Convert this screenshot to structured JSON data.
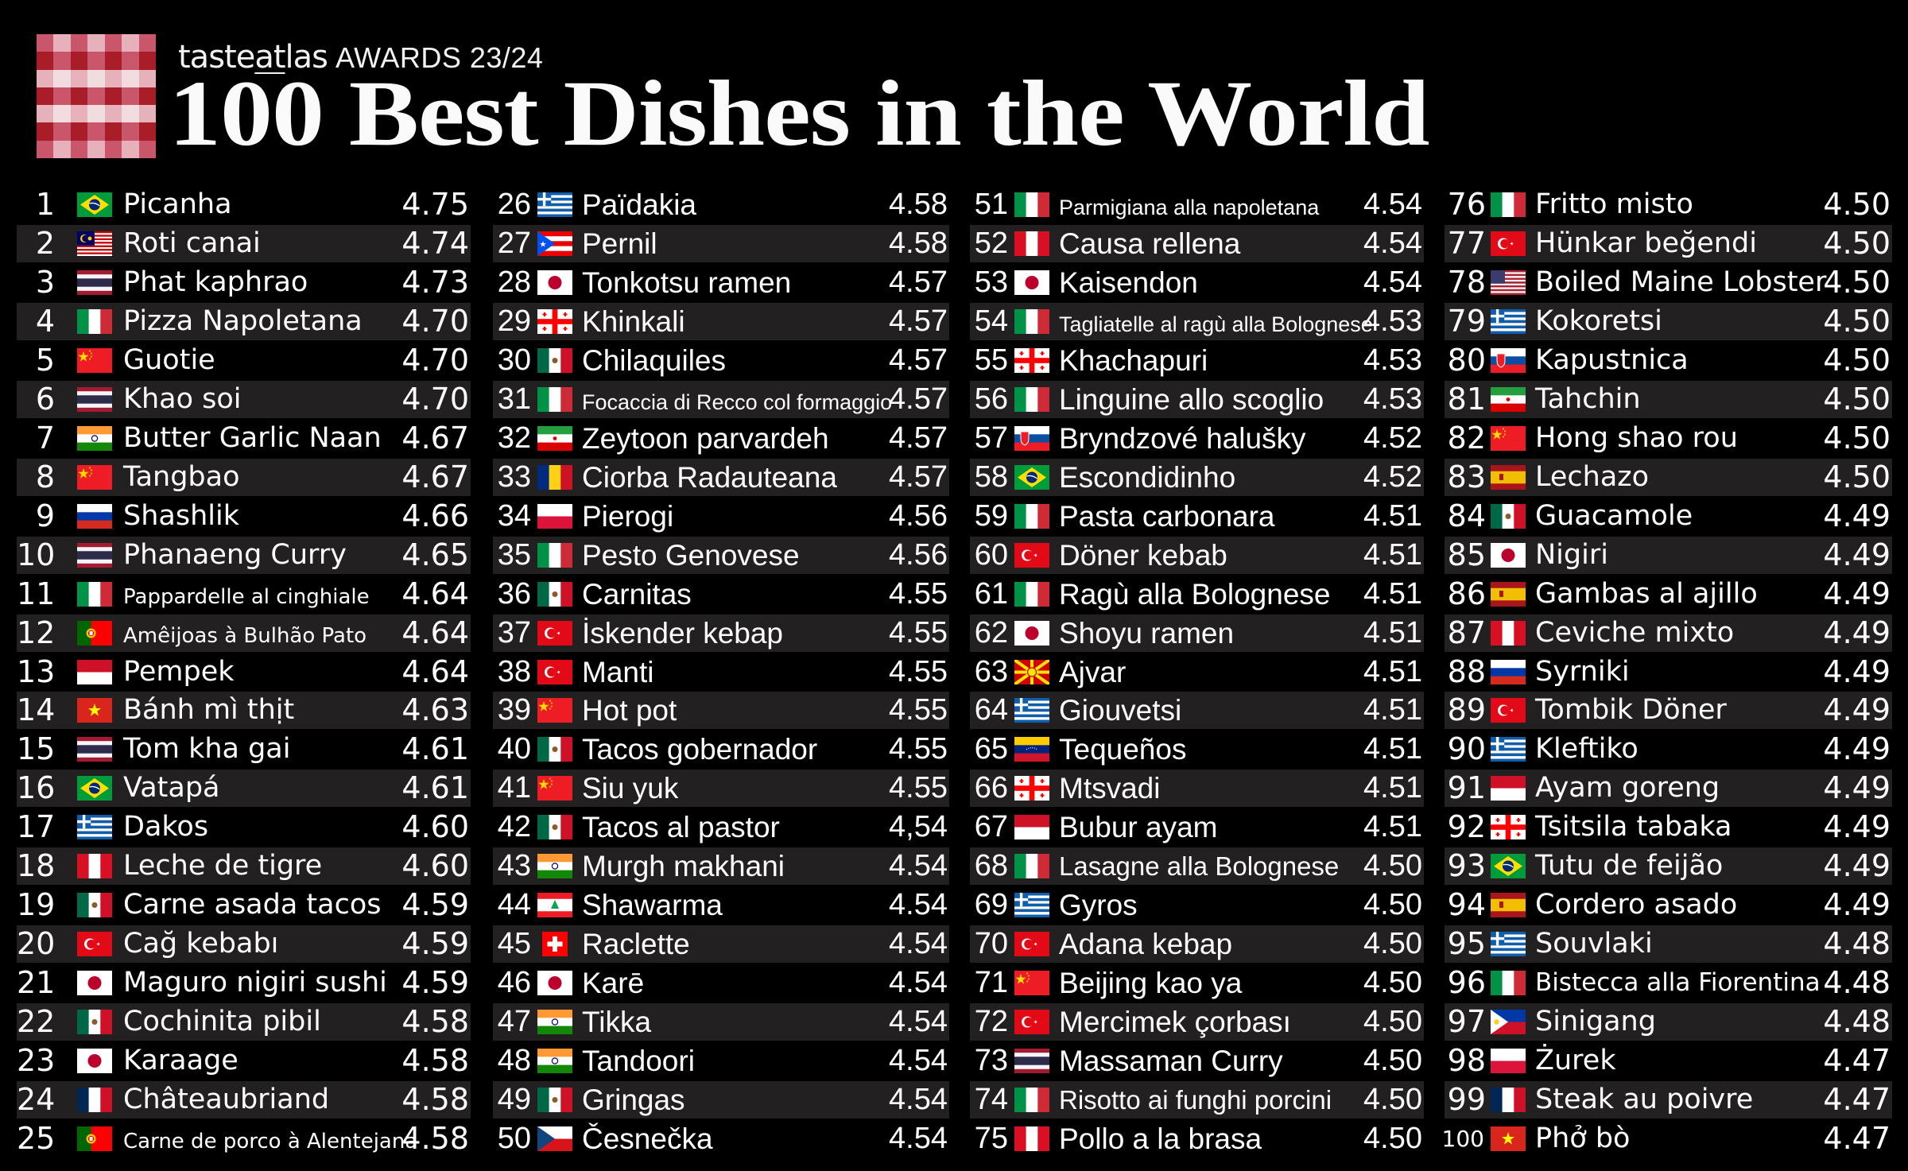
{
  "header": {
    "brand_name": "tasteatlas",
    "awards_label": "AWARDS 23/24",
    "title": "100 Best Dishes in the World",
    "logo_colors": {
      "dark": "#a91d28",
      "mid": "#c9566a",
      "light": "#e6b1ba",
      "pale": "#f1dcdf"
    }
  },
  "colors": {
    "background": "#000000",
    "stripe": "#222021",
    "text": "#ffffff"
  },
  "columns": [
    {
      "dishes": [
        {
          "rank": "1",
          "flag": "brazil",
          "name": "Picanha",
          "score": "4.75"
        },
        {
          "rank": "2",
          "flag": "malaysia",
          "name": "Roti canai",
          "score": "4.74"
        },
        {
          "rank": "3",
          "flag": "thailand",
          "name": "Phat kaphrao",
          "score": "4.73"
        },
        {
          "rank": "4",
          "flag": "italy",
          "name": "Pizza Napoletana",
          "score": "4.70"
        },
        {
          "rank": "5",
          "flag": "china",
          "name": "Guotie",
          "score": "4.70"
        },
        {
          "rank": "6",
          "flag": "thailand",
          "name": "Khao soi",
          "score": "4.70"
        },
        {
          "rank": "7",
          "flag": "india",
          "name": "Butter Garlic Naan",
          "score": "4.67"
        },
        {
          "rank": "8",
          "flag": "china",
          "name": "Tangbao",
          "score": "4.67"
        },
        {
          "rank": "9",
          "flag": "russia",
          "name": "Shashlik",
          "score": "4.66"
        },
        {
          "rank": "10",
          "flag": "thailand",
          "name": "Phanaeng Curry",
          "score": "4.65"
        },
        {
          "rank": "11",
          "flag": "italy",
          "name": "Pappardelle al cinghiale",
          "score": "4.64",
          "small": true
        },
        {
          "rank": "12",
          "flag": "portugal",
          "name": "Amêijoas à Bulhão Pato",
          "score": "4.64",
          "small": true
        },
        {
          "rank": "13",
          "flag": "indonesia",
          "name": "Pempek",
          "score": "4.64"
        },
        {
          "rank": "14",
          "flag": "vietnam",
          "name": "Bánh mì thịt",
          "score": "4.63"
        },
        {
          "rank": "15",
          "flag": "thailand",
          "name": "Tom kha gai",
          "score": "4.61"
        },
        {
          "rank": "16",
          "flag": "brazil",
          "name": "Vatapá",
          "score": "4.61"
        },
        {
          "rank": "17",
          "flag": "greece",
          "name": "Dakos",
          "score": "4.60"
        },
        {
          "rank": "18",
          "flag": "peru",
          "name": "Leche de tigre",
          "score": "4.60"
        },
        {
          "rank": "19",
          "flag": "mexico",
          "name": "Carne asada tacos",
          "score": "4.59"
        },
        {
          "rank": "20",
          "flag": "turkey",
          "name": "Cağ kebabı",
          "score": "4.59"
        },
        {
          "rank": "21",
          "flag": "japan",
          "name": "Maguro nigiri sushi",
          "score": "4.59"
        },
        {
          "rank": "22",
          "flag": "mexico",
          "name": "Cochinita pibil",
          "score": "4.58"
        },
        {
          "rank": "23",
          "flag": "japan",
          "name": "Karaage",
          "score": "4.58"
        },
        {
          "rank": "24",
          "flag": "france",
          "name": "Châteaubriand",
          "score": "4.58"
        },
        {
          "rank": "25",
          "flag": "portugal",
          "name": "Carne de porco à Alentejana",
          "score": "4.58",
          "small": true
        }
      ]
    },
    {
      "dishes": [
        {
          "rank": "26",
          "flag": "greece",
          "name": "Païdakia",
          "score": "4.58"
        },
        {
          "rank": "27",
          "flag": "puerto-rico",
          "name": "Pernil",
          "score": "4.58"
        },
        {
          "rank": "28",
          "flag": "japan",
          "name": "Tonkotsu ramen",
          "score": "4.57"
        },
        {
          "rank": "29",
          "flag": "georgia",
          "name": "Khinkali",
          "score": "4.57"
        },
        {
          "rank": "30",
          "flag": "mexico",
          "name": "Chilaquiles",
          "score": "4.57"
        },
        {
          "rank": "31",
          "flag": "italy",
          "name": "Focaccia di Recco col formaggio",
          "score": "4.57",
          "small": true
        },
        {
          "rank": "32",
          "flag": "iran",
          "name": "Zeytoon parvardeh",
          "score": "4.57"
        },
        {
          "rank": "33",
          "flag": "romania",
          "name": "Ciorba Radauteana",
          "score": "4.57"
        },
        {
          "rank": "34",
          "flag": "poland",
          "name": "Pierogi",
          "score": "4.56"
        },
        {
          "rank": "35",
          "flag": "italy",
          "name": "Pesto Genovese",
          "score": "4.56"
        },
        {
          "rank": "36",
          "flag": "mexico",
          "name": "Carnitas",
          "score": "4.55"
        },
        {
          "rank": "37",
          "flag": "turkey",
          "name": "İskender kebap",
          "score": "4.55"
        },
        {
          "rank": "38",
          "flag": "turkey",
          "name": "Manti",
          "score": "4.55"
        },
        {
          "rank": "39",
          "flag": "china",
          "name": "Hot pot",
          "score": "4.55"
        },
        {
          "rank": "40",
          "flag": "mexico",
          "name": "Tacos gobernador",
          "score": "4.55"
        },
        {
          "rank": "41",
          "flag": "china",
          "name": "Siu yuk",
          "score": "4.55"
        },
        {
          "rank": "42",
          "flag": "mexico",
          "name": "Tacos al pastor",
          "score": "4,54"
        },
        {
          "rank": "43",
          "flag": "india",
          "name": "Murgh makhani",
          "score": "4.54"
        },
        {
          "rank": "44",
          "flag": "lebanon",
          "name": "Shawarma",
          "score": "4.54"
        },
        {
          "rank": "45",
          "flag": "switzerland",
          "name": "Raclette",
          "score": "4.54"
        },
        {
          "rank": "46",
          "flag": "japan",
          "name": "Karē",
          "score": "4.54"
        },
        {
          "rank": "47",
          "flag": "india",
          "name": "Tikka",
          "score": "4.54"
        },
        {
          "rank": "48",
          "flag": "india",
          "name": "Tandoori",
          "score": "4.54"
        },
        {
          "rank": "49",
          "flag": "mexico",
          "name": "Gringas",
          "score": "4.54"
        },
        {
          "rank": "50",
          "flag": "czechia",
          "name": "Česnečka",
          "score": "4.54"
        }
      ]
    },
    {
      "dishes": [
        {
          "rank": "51",
          "flag": "italy",
          "name": "Parmigiana alla napoletana",
          "score": "4.54",
          "small": true
        },
        {
          "rank": "52",
          "flag": "peru",
          "name": "Causa rellena",
          "score": "4.54"
        },
        {
          "rank": "53",
          "flag": "japan",
          "name": "Kaisendon",
          "score": "4.54"
        },
        {
          "rank": "54",
          "flag": "italy",
          "name": "Tagliatelle al ragù alla Bolognese",
          "score": "4.53",
          "small": true
        },
        {
          "rank": "55",
          "flag": "georgia",
          "name": "Khachapuri",
          "score": "4.53"
        },
        {
          "rank": "56",
          "flag": "italy",
          "name": "Linguine allo scoglio",
          "score": "4.53"
        },
        {
          "rank": "57",
          "flag": "slovakia",
          "name": "Bryndzové halušky",
          "score": "4.52"
        },
        {
          "rank": "58",
          "flag": "brazil",
          "name": "Escondidinho",
          "score": "4.52"
        },
        {
          "rank": "59",
          "flag": "italy",
          "name": "Pasta carbonara",
          "score": "4.51"
        },
        {
          "rank": "60",
          "flag": "turkey",
          "name": "Döner kebab",
          "score": "4.51"
        },
        {
          "rank": "61",
          "flag": "italy",
          "name": "Ragù alla Bolognese",
          "score": "4.51"
        },
        {
          "rank": "62",
          "flag": "japan",
          "name": "Shoyu ramen",
          "score": "4.51"
        },
        {
          "rank": "63",
          "flag": "north-macedonia",
          "name": "Ajvar",
          "score": "4.51"
        },
        {
          "rank": "64",
          "flag": "greece",
          "name": "Giouvetsi",
          "score": "4.51"
        },
        {
          "rank": "65",
          "flag": "venezuela",
          "name": "Tequeños",
          "score": "4.51"
        },
        {
          "rank": "66",
          "flag": "georgia",
          "name": "Mtsvadi",
          "score": "4.51"
        },
        {
          "rank": "67",
          "flag": "indonesia",
          "name": "Bubur ayam",
          "score": "4.51"
        },
        {
          "rank": "68",
          "flag": "italy",
          "name": "Lasagne alla Bolognese",
          "score": "4.50",
          "medium": true
        },
        {
          "rank": "69",
          "flag": "greece",
          "name": "Gyros",
          "score": "4.50"
        },
        {
          "rank": "70",
          "flag": "turkey",
          "name": "Adana kebap",
          "score": "4.50"
        },
        {
          "rank": "71",
          "flag": "china",
          "name": "Beijing kao ya",
          "score": "4.50"
        },
        {
          "rank": "72",
          "flag": "turkey",
          "name": "Mercimek çorbası",
          "score": "4.50"
        },
        {
          "rank": "73",
          "flag": "thailand",
          "name": "Massaman Curry",
          "score": "4.50"
        },
        {
          "rank": "74",
          "flag": "italy",
          "name": "Risotto ai funghi porcini",
          "score": "4.50",
          "medium": true
        },
        {
          "rank": "75",
          "flag": "peru",
          "name": "Pollo a la brasa",
          "score": "4.50"
        }
      ]
    },
    {
      "dishes": [
        {
          "rank": "76",
          "flag": "italy",
          "name": "Fritto misto",
          "score": "4.50"
        },
        {
          "rank": "77",
          "flag": "turkey",
          "name": "Hünkar beğendi",
          "score": "4.50"
        },
        {
          "rank": "78",
          "flag": "usa",
          "name": "Boiled Maine Lobster",
          "score": "4.50"
        },
        {
          "rank": "79",
          "flag": "greece",
          "name": "Kokoretsi",
          "score": "4.50"
        },
        {
          "rank": "80",
          "flag": "slovakia",
          "name": "Kapustnica",
          "score": "4.50"
        },
        {
          "rank": "81",
          "flag": "iran",
          "name": "Tahchin",
          "score": "4.50"
        },
        {
          "rank": "82",
          "flag": "china",
          "name": "Hong shao rou",
          "score": "4.50"
        },
        {
          "rank": "83",
          "flag": "spain",
          "name": "Lechazo",
          "score": "4.50"
        },
        {
          "rank": "84",
          "flag": "mexico",
          "name": "Guacamole",
          "score": "4.49"
        },
        {
          "rank": "85",
          "flag": "japan",
          "name": "Nigiri",
          "score": "4.49"
        },
        {
          "rank": "86",
          "flag": "spain",
          "name": "Gambas al ajillo",
          "score": "4.49"
        },
        {
          "rank": "87",
          "flag": "peru",
          "name": "Ceviche mixto",
          "score": "4.49"
        },
        {
          "rank": "88",
          "flag": "russia",
          "name": "Syrniki",
          "score": "4.49"
        },
        {
          "rank": "89",
          "flag": "turkey",
          "name": "Tombik Döner",
          "score": "4.49"
        },
        {
          "rank": "90",
          "flag": "greece",
          "name": "Kleftiko",
          "score": "4.49"
        },
        {
          "rank": "91",
          "flag": "indonesia",
          "name": "Ayam goreng",
          "score": "4.49"
        },
        {
          "rank": "92",
          "flag": "georgia",
          "name": "Tsitsila tabaka",
          "score": "4.49"
        },
        {
          "rank": "93",
          "flag": "brazil",
          "name": "Tutu de feijão",
          "score": "4.49"
        },
        {
          "rank": "94",
          "flag": "spain",
          "name": "Cordero asado",
          "score": "4.49"
        },
        {
          "rank": "95",
          "flag": "greece",
          "name": "Souvlaki",
          "score": "4.48"
        },
        {
          "rank": "96",
          "flag": "italy",
          "name": "Bistecca alla Fiorentina",
          "score": "4.48",
          "medium": true
        },
        {
          "rank": "97",
          "flag": "philippines",
          "name": "Sinigang",
          "score": "4.48"
        },
        {
          "rank": "98",
          "flag": "poland",
          "name": "Żurek",
          "score": "4.47"
        },
        {
          "rank": "99",
          "flag": "france",
          "name": "Steak au poivre",
          "score": "4.47"
        },
        {
          "rank": "100",
          "flag": "vietnam",
          "name": "Phở bò",
          "score": "4.47",
          "small_rank": true
        }
      ]
    }
  ]
}
